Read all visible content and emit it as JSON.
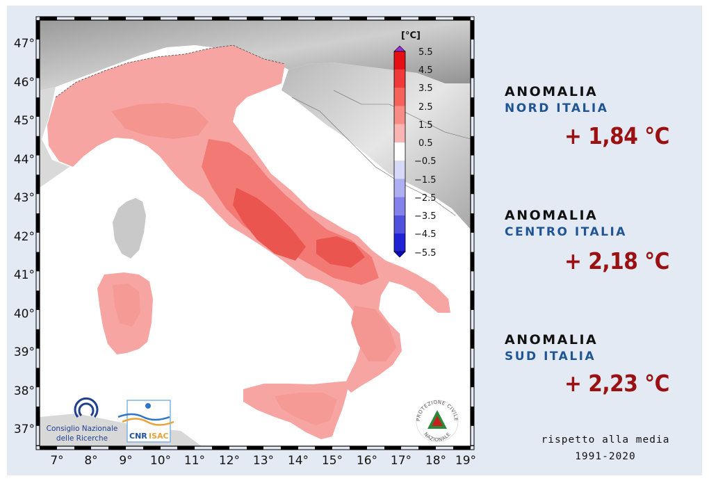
{
  "map": {
    "y_ticks": [
      "47°",
      "46°",
      "45°",
      "44°",
      "43°",
      "42°",
      "41°",
      "40°",
      "39°",
      "38°",
      "37°"
    ],
    "x_ticks": [
      "7°",
      "8°",
      "9°",
      "10°",
      "11°",
      "12°",
      "13°",
      "14°",
      "15°",
      "16°",
      "17°",
      "18°",
      "19°"
    ]
  },
  "colorbar": {
    "unit": "[°C]",
    "labels": [
      "5.5",
      "4.5",
      "3.5",
      "2.5",
      "1.5",
      "0.5",
      "−0.5",
      "−1.5",
      "−2.5",
      "−3.5",
      "−4.5",
      "−5.5"
    ],
    "colors": [
      "#e60f14",
      "#f03a3a",
      "#f5625c",
      "#f78b86",
      "#fab5b3",
      "#fce0e0",
      "#ffffff",
      "#d8d8f8",
      "#aeaef2",
      "#8282ea",
      "#5050df",
      "#2121d5",
      "#0808c8"
    ]
  },
  "logos": {
    "cnr": {
      "line1": "Consiglio Nazionale",
      "line2": "delle Ricerche"
    },
    "cnr_isac": {
      "cnr": "CNR",
      "isac": "ISAC"
    },
    "protezione": {
      "top": "PROTEZIONE CIVILE",
      "bottom": "NAZIONALE"
    }
  },
  "anomalies": [
    {
      "label": "ANOMALIA",
      "region": "NORD ITALIA",
      "value": "+ 1,84 °C"
    },
    {
      "label": "ANOMALIA",
      "region": "CENTRO ITALIA",
      "value": "+ 2,18 °C"
    },
    {
      "label": "ANOMALIA",
      "region": "SUD ITALIA",
      "value": "+ 2,23 °C"
    }
  ],
  "footnote": {
    "line1": "rispetto alla media",
    "line2": "1991-2020"
  }
}
